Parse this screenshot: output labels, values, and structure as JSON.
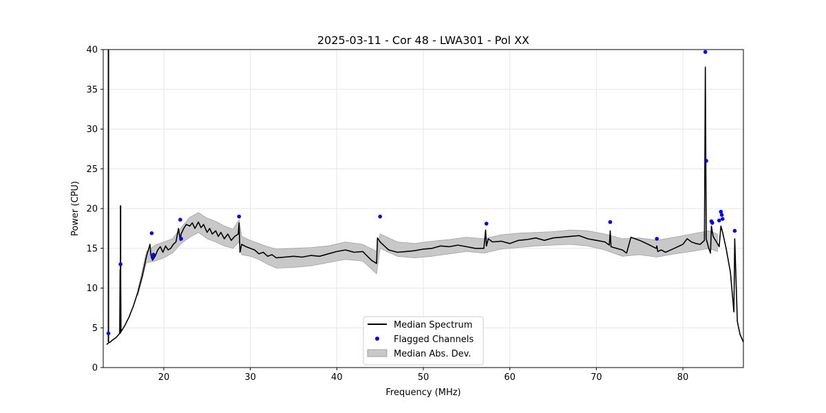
{
  "chart_data": {
    "type": "line",
    "title": "2025-03-11 - Cor 48 - LWA301 - Pol XX",
    "xlabel": "Frequency (MHz)",
    "ylabel": "Power (CPU)",
    "xlim": [
      13.0,
      87.0
    ],
    "ylim": [
      0,
      40
    ],
    "xticks": [
      20,
      30,
      40,
      50,
      60,
      70,
      80
    ],
    "yticks": [
      0,
      5,
      10,
      15,
      20,
      25,
      30,
      35,
      40
    ],
    "grid": true,
    "legend": {
      "placement": "lower-center",
      "entries": [
        "Median Spectrum",
        "Flagged Channels",
        "Median Abs. Dev."
      ]
    },
    "colors": {
      "median": "#000000",
      "flagged": "#0000ff",
      "mad_fill": "#c8c8c8",
      "mad_edge": "#a0a0a0",
      "grid": "#e6e6e6"
    },
    "series": [
      {
        "name": "Median Spectrum",
        "x": [
          13.4,
          13.6,
          13.8,
          14.0,
          14.5,
          14.9,
          14.95,
          15.0,
          15.05,
          15.5,
          16.0,
          16.5,
          17.0,
          17.5,
          18.0,
          18.4,
          18.5,
          18.7,
          19.0,
          19.3,
          19.6,
          19.9,
          20.2,
          20.5,
          20.8,
          21.1,
          21.4,
          21.7,
          21.9,
          22.0,
          22.3,
          22.6,
          23.0,
          23.3,
          23.6,
          24.0,
          24.3,
          24.6,
          25.0,
          25.3,
          25.6,
          26.0,
          26.3,
          26.6,
          27.0,
          27.4,
          27.8,
          28.2,
          28.6,
          28.7,
          28.8,
          29.0,
          29.5,
          30.0,
          30.5,
          31.0,
          31.5,
          32.0,
          32.5,
          33.0,
          34.0,
          35.0,
          36.0,
          37.0,
          38.0,
          39.0,
          40.0,
          41.0,
          42.0,
          43.0,
          44.0,
          44.6,
          44.7,
          45.0,
          45.5,
          46.0,
          47.0,
          48.0,
          49.0,
          50.0,
          51.0,
          52.0,
          53.0,
          54.0,
          55.0,
          56.0,
          57.0,
          57.2,
          57.3,
          57.5,
          58.0,
          59.0,
          60.0,
          61.0,
          62.0,
          63.0,
          64.0,
          65.0,
          66.0,
          67.0,
          68.0,
          69.0,
          70.0,
          71.0,
          71.5,
          71.6,
          71.7,
          72.0,
          73.0,
          73.5,
          74.0,
          75.0,
          76.0,
          76.9,
          77.0,
          77.1,
          77.5,
          78.0,
          79.0,
          80.0,
          80.5,
          81.0,
          81.5,
          82.0,
          82.5,
          82.6,
          82.7,
          82.8,
          83.0,
          83.2,
          83.3,
          83.5,
          84.0,
          84.2,
          84.4,
          84.6,
          85.0,
          85.5,
          85.9,
          86.0,
          86.3,
          86.6,
          87.0
        ],
        "y": [
          2.9,
          3.1,
          3.2,
          3.4,
          3.8,
          4.3,
          12.3,
          12.3,
          4.5,
          5.3,
          6.4,
          7.8,
          9.5,
          11.5,
          14.0,
          15.5,
          14.2,
          13.5,
          14.0,
          14.8,
          15.2,
          14.5,
          15.3,
          14.8,
          15.0,
          15.5,
          15.8,
          17.5,
          16.0,
          16.8,
          17.5,
          18.0,
          17.8,
          18.2,
          17.5,
          18.3,
          17.6,
          18.0,
          17.0,
          17.5,
          16.8,
          17.2,
          16.5,
          17.0,
          16.2,
          16.8,
          16.0,
          16.5,
          16.8,
          18.2,
          14.5,
          15.5,
          15.2,
          15.0,
          14.8,
          14.3,
          14.5,
          14.0,
          14.2,
          13.8,
          13.9,
          14.0,
          13.9,
          14.1,
          14.0,
          14.3,
          14.6,
          14.8,
          14.5,
          14.6,
          13.5,
          13.1,
          16.3,
          15.8,
          15.3,
          14.8,
          14.5,
          14.6,
          14.7,
          14.9,
          15.0,
          15.3,
          15.2,
          15.4,
          15.2,
          15.0,
          15.0,
          17.3,
          15.3,
          16.2,
          15.8,
          15.9,
          15.6,
          16.0,
          16.1,
          16.3,
          16.0,
          16.3,
          16.4,
          16.5,
          16.6,
          16.2,
          16.0,
          15.8,
          15.4,
          17.2,
          15.2,
          15.1,
          14.8,
          14.4,
          16.4,
          16.0,
          15.5,
          15.0,
          15.3,
          14.6,
          14.8,
          14.5,
          15.0,
          15.5,
          16.2,
          15.8,
          15.6,
          15.5,
          16.0,
          37.8,
          16.2,
          15.8,
          15.0,
          14.4,
          17.8,
          16.5,
          15.6,
          15.2,
          17.8,
          17.0,
          15.0,
          12.0,
          7.0,
          16.2,
          5.8,
          4.2,
          3.2
        ]
      },
      {
        "name": "Flagged Channels",
        "x": [
          13.6,
          15.0,
          18.6,
          18.7,
          18.8,
          21.9,
          22.0,
          28.7,
          45.0,
          57.3,
          71.6,
          77.0,
          82.6,
          82.7,
          83.3,
          83.4,
          84.2,
          84.4,
          84.5,
          84.6,
          86.0
        ],
        "y": [
          4.3,
          13.0,
          16.9,
          13.9,
          14.2,
          18.6,
          16.2,
          19.0,
          19.0,
          18.1,
          18.3,
          16.2,
          39.7,
          26.0,
          18.4,
          18.2,
          18.5,
          19.6,
          19.2,
          18.7,
          17.2
        ]
      },
      {
        "name": "Median Abs. Dev.",
        "x": [
          17.0,
          18.0,
          19.0,
          20.0,
          21.0,
          22.0,
          23.0,
          24.0,
          25.0,
          26.0,
          27.0,
          28.0,
          28.7,
          29.0,
          30.0,
          31.0,
          32.0,
          33.0,
          35.0,
          37.0,
          39.0,
          41.0,
          43.0,
          44.6,
          45.0,
          47.0,
          49.0,
          51.0,
          53.0,
          55.0,
          57.0,
          59.0,
          61.0,
          63.0,
          65.0,
          67.0,
          69.0,
          71.0,
          73.0,
          75.0,
          77.0,
          79.0,
          81.0,
          83.0,
          84.0
        ],
        "upper": [
          9.8,
          14.6,
          15.4,
          15.8,
          16.2,
          17.6,
          18.9,
          19.5,
          18.8,
          18.4,
          17.8,
          17.4,
          18.6,
          16.5,
          16.0,
          15.6,
          15.2,
          14.9,
          15.0,
          15.1,
          15.3,
          15.8,
          15.5,
          14.6,
          16.8,
          15.8,
          15.6,
          15.9,
          16.1,
          16.4,
          16.2,
          16.7,
          16.9,
          17.0,
          17.1,
          17.3,
          17.2,
          16.8,
          16.2,
          16.3,
          16.0,
          16.4,
          16.8,
          17.2,
          16.8
        ],
        "lower": [
          9.0,
          13.2,
          13.4,
          13.8,
          14.4,
          15.6,
          16.4,
          17.0,
          16.2,
          15.8,
          15.3,
          15.0,
          15.8,
          14.2,
          14.0,
          13.6,
          13.0,
          12.5,
          12.6,
          12.8,
          13.2,
          13.6,
          13.4,
          11.8,
          15.0,
          14.0,
          13.8,
          14.0,
          14.3,
          14.6,
          14.4,
          14.9,
          15.1,
          15.3,
          15.4,
          15.5,
          15.3,
          14.8,
          14.0,
          14.2,
          13.9,
          14.3,
          14.6,
          15.0,
          14.6
        ]
      }
    ],
    "spikes": [
      {
        "x": 13.6,
        "from": 3.2,
        "to": 40.0
      },
      {
        "x": 15.0,
        "from": 4.3,
        "to": 20.4
      }
    ]
  }
}
